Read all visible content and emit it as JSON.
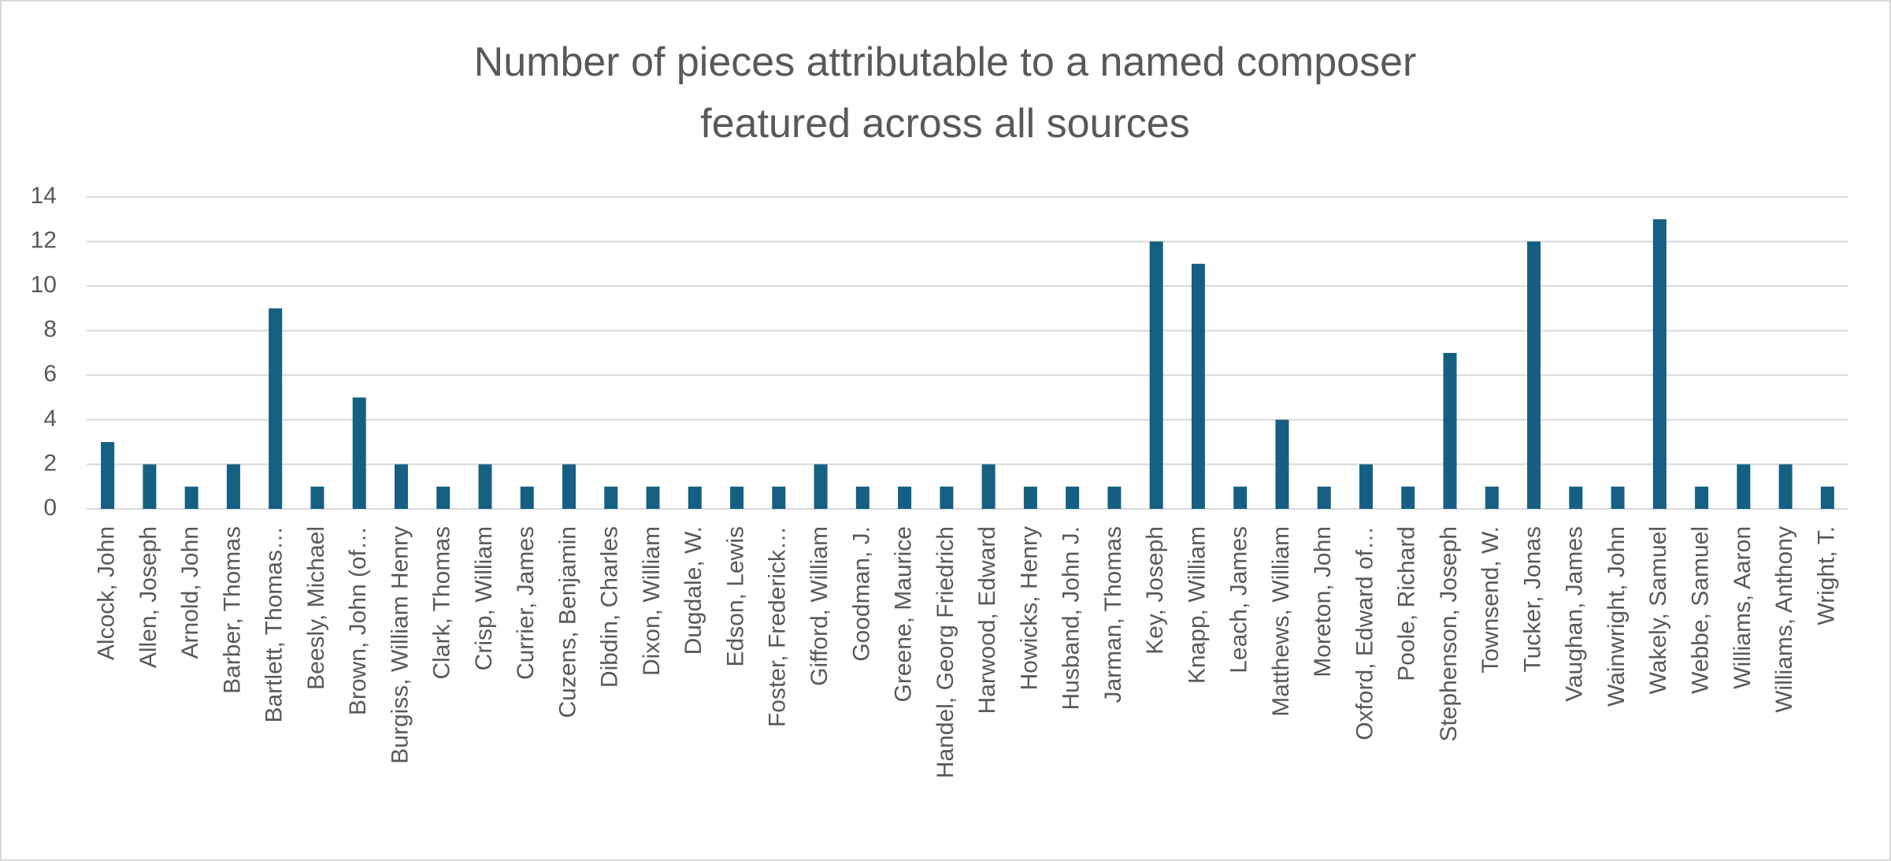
{
  "chart_data": {
    "type": "bar",
    "title": "Number of pieces attributable to a named composer featured across all sources",
    "categories": [
      "Alcock, John",
      "Allen, Joseph",
      "Arnold, John",
      "Barber, Thomas",
      "Bartlett, Thomas…",
      "Beesly, Michael",
      "Brown, John (of…",
      "Burgiss, William Henry",
      "Clark, Thomas",
      "Crisp, William",
      "Currier, James",
      "Cuzens, Benjamin",
      "Dibdin, Charles",
      "Dixon, William",
      "Dugdale, W.",
      "Edson, Lewis",
      "Foster, Frederick…",
      "Gifford, William",
      "Goodman, J.",
      "Greene, Maurice",
      "Handel, Georg Friedrich",
      "Harwood, Edward",
      "Howicks, Henry",
      "Husband, John J.",
      "Jarman, Thomas",
      "Key, Joseph",
      "Knapp, William",
      "Leach, James",
      "Matthews, William",
      "Moreton, John",
      "Oxford, Edward of…",
      "Poole, Richard",
      "Stephenson, Joseph",
      "Townsend, W.",
      "Tucker, Jonas",
      "Vaughan, James",
      "Wainwright, John",
      "Wakely, Samuel",
      "Webbe, Samuel",
      "Williams, Aaron",
      "Williams, Anthony",
      "Wright, T."
    ],
    "values": [
      3,
      2,
      1,
      2,
      9,
      1,
      5,
      2,
      1,
      2,
      1,
      2,
      1,
      1,
      1,
      1,
      1,
      2,
      1,
      1,
      1,
      2,
      1,
      1,
      1,
      12,
      11,
      1,
      4,
      1,
      2,
      1,
      7,
      1,
      12,
      1,
      1,
      13,
      1,
      2,
      2,
      1
    ],
    "color": "#156082",
    "ylim": [
      0,
      14
    ],
    "yticks": [
      0,
      2,
      4,
      6,
      8,
      10,
      12,
      14
    ],
    "grid": true
  }
}
